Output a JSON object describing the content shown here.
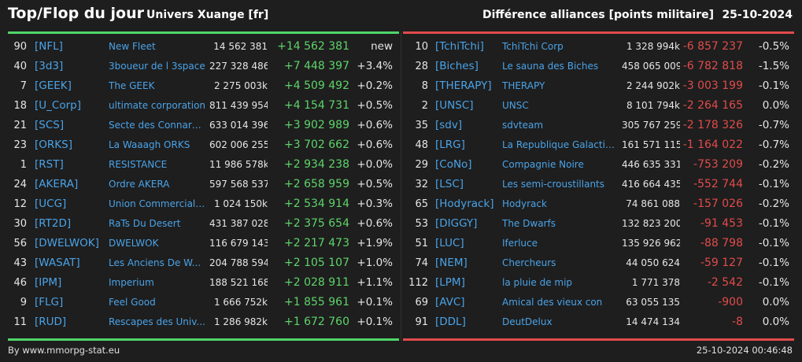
{
  "header": {
    "title": "Top/Flop du jour",
    "server": "Univers Xuange [fr]",
    "subtitle": "Différence alliances [points militaire]",
    "date": "25-10-2024"
  },
  "colors": {
    "top_accent": "#4fd66a",
    "flop_accent": "#e14b4b",
    "link": "#4aa3e8",
    "background": "#1e1e1e"
  },
  "top": [
    {
      "rank": "90",
      "tag": "[NFL]",
      "name": "New Fleet",
      "points": "14 562 381",
      "diff": "+14 562 381",
      "pct": "new"
    },
    {
      "rank": "40",
      "tag": "[3d3]",
      "name": "3boueur de l 3space",
      "points": "227 328 486",
      "diff": "+7 448 397",
      "pct": "+3.4%"
    },
    {
      "rank": "7",
      "tag": "[GEEK]",
      "name": "The GEEK",
      "points": "2 275 003k",
      "diff": "+4 509 492",
      "pct": "+0.2%"
    },
    {
      "rank": "18",
      "tag": "[U_Corp]",
      "name": "ultimate corporation",
      "points": "811 439 954",
      "diff": "+4 154 731",
      "pct": "+0.5%"
    },
    {
      "rank": "21",
      "tag": "[SCS]",
      "name": "Secte des Connard...",
      "points": "633 014 396",
      "diff": "+3 902 989",
      "pct": "+0.6%"
    },
    {
      "rank": "23",
      "tag": "[ORKS]",
      "name": "La Waaagh ORKS",
      "points": "602 006 255",
      "diff": "+3 702 662",
      "pct": "+0.6%"
    },
    {
      "rank": "1",
      "tag": "[RST]",
      "name": "RESISTANCE",
      "points": "11 986 578k",
      "diff": "+2 934 238",
      "pct": "+0.0%"
    },
    {
      "rank": "24",
      "tag": "[AKERA]",
      "name": "Ordre AKERA",
      "points": "597 568 537",
      "diff": "+2 658 959",
      "pct": "+0.5%"
    },
    {
      "rank": "12",
      "tag": "[UCG]",
      "name": "Union Commerciale...",
      "points": "1 024 150k",
      "diff": "+2 534 914",
      "pct": "+0.3%"
    },
    {
      "rank": "30",
      "tag": "[RT2D]",
      "name": "RaTs Du Desert",
      "points": "431 387 028",
      "diff": "+2 375 654",
      "pct": "+0.6%"
    },
    {
      "rank": "56",
      "tag": "[DWELWOK]",
      "name": "DWELWOK",
      "points": "116 679 143",
      "diff": "+2 217 473",
      "pct": "+1.9%"
    },
    {
      "rank": "43",
      "tag": "[WASAT]",
      "name": "Les Anciens De W...",
      "points": "204 788 594",
      "diff": "+2 105 107",
      "pct": "+1.0%"
    },
    {
      "rank": "46",
      "tag": "[IPM]",
      "name": "Imperium",
      "points": "188 521 168",
      "diff": "+2 028 911",
      "pct": "+1.1%"
    },
    {
      "rank": "9",
      "tag": "[FLG]",
      "name": "Feel Good",
      "points": "1 666 752k",
      "diff": "+1 855 961",
      "pct": "+0.1%"
    },
    {
      "rank": "11",
      "tag": "[RUD]",
      "name": "Rescapes des Univ...",
      "points": "1 286 982k",
      "diff": "+1 672 760",
      "pct": "+0.1%"
    }
  ],
  "flop": [
    {
      "rank": "10",
      "tag": "[TchiTchi]",
      "name": "TchiTchi Corp",
      "points": "1 328 994k",
      "diff": "-6 857 237",
      "pct": "-0.5%"
    },
    {
      "rank": "28",
      "tag": "[Biches]",
      "name": "Le sauna des Biches",
      "points": "458 065 009",
      "diff": "-6 782 818",
      "pct": "-1.5%"
    },
    {
      "rank": "8",
      "tag": "[THERAPY]",
      "name": "THERAPY",
      "points": "2 244 902k",
      "diff": "-3 003 199",
      "pct": "-0.1%"
    },
    {
      "rank": "2",
      "tag": "[UNSC]",
      "name": "UNSC",
      "points": "8 101 794k",
      "diff": "-2 264 165",
      "pct": "0.0%"
    },
    {
      "rank": "35",
      "tag": "[sdv]",
      "name": "sdvteam",
      "points": "305 767 259",
      "diff": "-2 178 326",
      "pct": "-0.7%"
    },
    {
      "rank": "48",
      "tag": "[LRG]",
      "name": "La Republique Galactique",
      "points": "161 571 115",
      "diff": "-1 164 022",
      "pct": "-0.7%"
    },
    {
      "rank": "29",
      "tag": "[CoNo]",
      "name": "Compagnie Noire",
      "points": "446 635 331",
      "diff": "-753 209",
      "pct": "-0.2%"
    },
    {
      "rank": "32",
      "tag": "[LSC]",
      "name": "Les semi-croustillants",
      "points": "416 664 435",
      "diff": "-552 744",
      "pct": "-0.1%"
    },
    {
      "rank": "65",
      "tag": "[Hodyrack]",
      "name": "Hodyrack",
      "points": "74 861 088",
      "diff": "-157 026",
      "pct": "-0.2%"
    },
    {
      "rank": "53",
      "tag": "[DIGGY]",
      "name": "The Dwarfs",
      "points": "132 823 200",
      "diff": "-91 453",
      "pct": "-0.1%"
    },
    {
      "rank": "51",
      "tag": "[LUC]",
      "name": "Iferluce",
      "points": "135 926 962",
      "diff": "-88 798",
      "pct": "-0.1%"
    },
    {
      "rank": "74",
      "tag": "[NEM]",
      "name": "Chercheurs",
      "points": "44 050 624",
      "diff": "-59 127",
      "pct": "-0.1%"
    },
    {
      "rank": "112",
      "tag": "[LPM]",
      "name": "la pluie de mip",
      "points": "1 771 378",
      "diff": "-2 542",
      "pct": "-0.1%"
    },
    {
      "rank": "69",
      "tag": "[AVC]",
      "name": "Amical des vieux con",
      "points": "63 055 135",
      "diff": "-900",
      "pct": "0.0%"
    },
    {
      "rank": "91",
      "tag": "[DDL]",
      "name": "DeutDelux",
      "points": "14 474 134",
      "diff": "-8",
      "pct": "0.0%"
    }
  ],
  "footer": {
    "credit": "By www.mmorpg-stat.eu",
    "timestamp": "25-10-2024 00:46:48"
  }
}
